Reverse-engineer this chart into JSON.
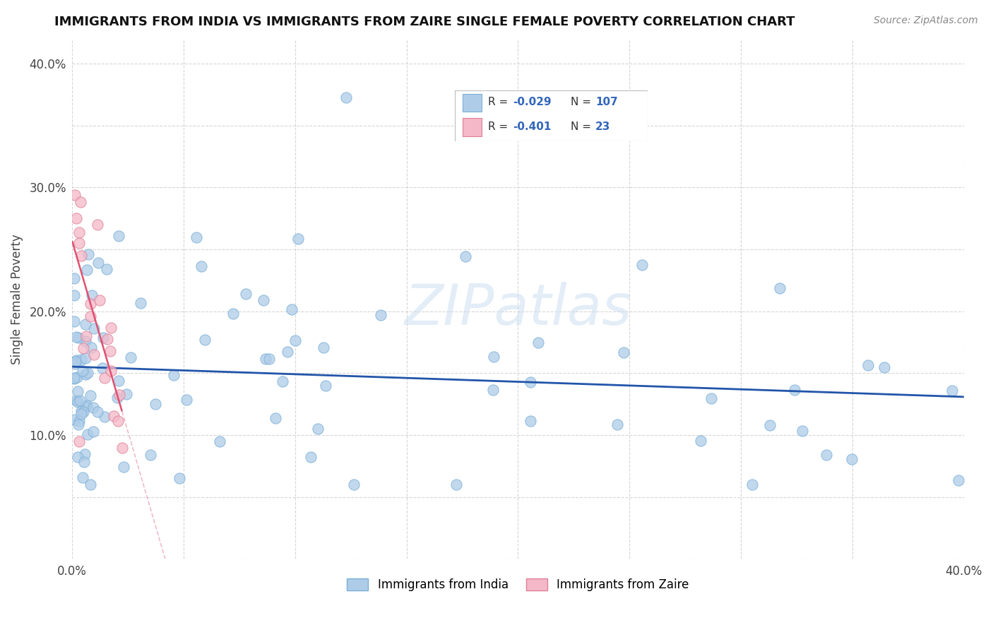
{
  "title": "IMMIGRANTS FROM INDIA VS IMMIGRANTS FROM ZAIRE SINGLE FEMALE POVERTY CORRELATION CHART",
  "source": "Source: ZipAtlas.com",
  "ylabel": "Single Female Poverty",
  "xlim": [
    0.0,
    0.4
  ],
  "ylim": [
    0.0,
    0.42
  ],
  "r_india": -0.029,
  "n_india": 107,
  "r_zaire": -0.401,
  "n_zaire": 23,
  "india_color": "#aecce8",
  "india_edge": "#7ab0d8",
  "zaire_color": "#f4b8c8",
  "zaire_edge": "#e08098",
  "india_line_color": "#2255aa",
  "zaire_line_solid": "#e05070",
  "zaire_line_dash": "#e8a0b0",
  "background_color": "#ffffff",
  "grid_color": "#cccccc",
  "title_fontsize": 13,
  "watermark": "ZIPatlas",
  "legend_r1": "R = -0.029   N = 107",
  "legend_r2": "R = -0.401   N =  23"
}
